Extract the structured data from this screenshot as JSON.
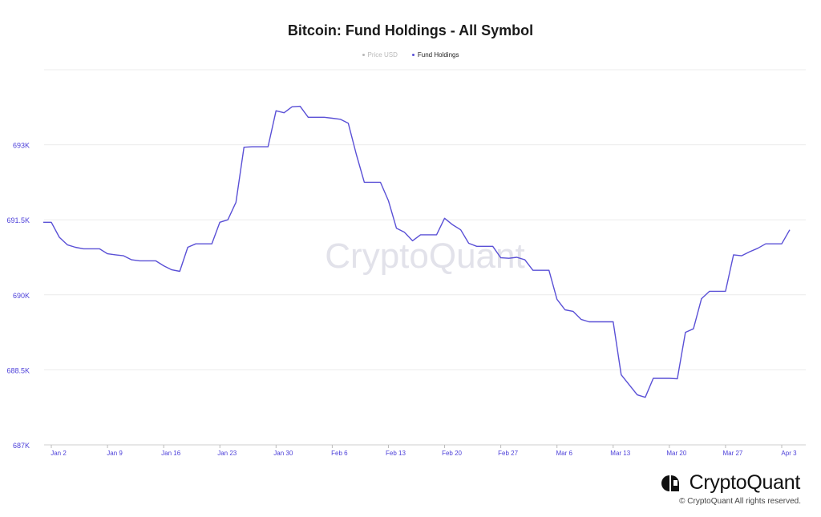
{
  "colors": {
    "series": "#5a50d6",
    "axis_label": "#4c3fd9",
    "grid": "#ececec",
    "price_legend": "#b8b8b8",
    "watermark": "#e2e2ea"
  },
  "chart_data": {
    "type": "line",
    "title": "Bitcoin: Fund Holdings - All Symbol",
    "legend": [
      {
        "name": "Price USD",
        "color": "#b8b8b8"
      },
      {
        "name": "Fund Holdings",
        "color": "#5a50d6"
      }
    ],
    "legend_position": "top-center",
    "grid": true,
    "y_ticks": [
      "687K",
      "688.5K",
      "690K",
      "691.5K",
      "693K"
    ],
    "ylim": [
      687000,
      694500
    ],
    "x_ticks": [
      "Jan 2",
      "Jan 9",
      "Jan 16",
      "Jan 23",
      "Jan 30",
      "Feb 6",
      "Feb 13",
      "Feb 20",
      "Feb 27",
      "Mar 6",
      "Mar 13",
      "Mar 20",
      "Mar 27",
      "Apr 3"
    ],
    "series": [
      {
        "name": "Fund Holdings",
        "x": [
          "Jan 1",
          "Jan 2",
          "Jan 3",
          "Jan 4",
          "Jan 5",
          "Jan 6",
          "Jan 7",
          "Jan 8",
          "Jan 9",
          "Jan 10",
          "Jan 11",
          "Jan 12",
          "Jan 13",
          "Jan 14",
          "Jan 15",
          "Jan 16",
          "Jan 17",
          "Jan 18",
          "Jan 19",
          "Jan 20",
          "Jan 21",
          "Jan 22",
          "Jan 23",
          "Jan 24",
          "Jan 25",
          "Jan 26",
          "Jan 27",
          "Jan 28",
          "Jan 29",
          "Jan 30",
          "Jan 31",
          "Feb 1",
          "Feb 2",
          "Feb 3",
          "Feb 4",
          "Feb 5",
          "Feb 6",
          "Feb 7",
          "Feb 8",
          "Feb 9",
          "Feb 10",
          "Feb 11",
          "Feb 12",
          "Feb 13",
          "Feb 14",
          "Feb 15",
          "Feb 16",
          "Feb 17",
          "Feb 18",
          "Feb 19",
          "Feb 20",
          "Feb 21",
          "Feb 22",
          "Feb 23",
          "Feb 24",
          "Feb 25",
          "Feb 26",
          "Feb 27",
          "Feb 28",
          "Mar 1",
          "Mar 2",
          "Mar 3",
          "Mar 4",
          "Mar 5",
          "Mar 6",
          "Mar 7",
          "Mar 8",
          "Mar 9",
          "Mar 10",
          "Mar 11",
          "Mar 12",
          "Mar 13",
          "Mar 14",
          "Mar 15",
          "Mar 16",
          "Mar 17",
          "Mar 18",
          "Mar 19",
          "Mar 20",
          "Mar 21",
          "Mar 22",
          "Mar 23",
          "Mar 24",
          "Mar 25",
          "Mar 26",
          "Mar 27",
          "Mar 28",
          "Mar 29",
          "Mar 30",
          "Mar 31",
          "Apr 1",
          "Apr 2",
          "Apr 3",
          "Apr 4"
        ],
        "values": [
          691450,
          691450,
          691150,
          691000,
          690950,
          690920,
          690920,
          690920,
          690820,
          690800,
          690780,
          690700,
          690680,
          690680,
          690680,
          690580,
          690500,
          690470,
          690950,
          691020,
          691020,
          691020,
          691450,
          691500,
          691850,
          692950,
          692960,
          692960,
          692960,
          693680,
          693640,
          693760,
          693770,
          693550,
          693550,
          693550,
          693530,
          693510,
          693430,
          692810,
          692250,
          692250,
          692250,
          691880,
          691330,
          691250,
          691080,
          691200,
          691200,
          691200,
          691530,
          691400,
          691300,
          691030,
          690970,
          690970,
          690970,
          690740,
          690730,
          690750,
          690700,
          690490,
          690490,
          690490,
          689910,
          689700,
          689670,
          689510,
          689460,
          689460,
          689460,
          689460,
          688400,
          688200,
          688000,
          687950,
          688330,
          688330,
          688330,
          688320,
          689250,
          689320,
          689920,
          690070,
          690070,
          690070,
          690800,
          690780,
          690860,
          690930,
          691020,
          691020,
          691020,
          691300
        ]
      }
    ],
    "watermark": "CryptoQuant"
  },
  "brand": {
    "name": "CryptoQuant",
    "copyright": "© CryptoQuant All rights reserved."
  }
}
